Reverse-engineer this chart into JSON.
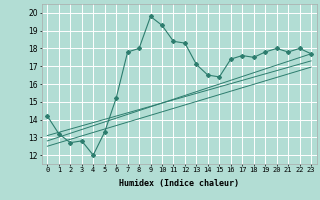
{
  "xlabel": "Humidex (Indice chaleur)",
  "bg_color": "#b2ddd4",
  "grid_color": "#ffffff",
  "line_color": "#2d7d6e",
  "xlim": [
    -0.5,
    23.5
  ],
  "ylim": [
    11.5,
    20.5
  ],
  "xticks": [
    0,
    1,
    2,
    3,
    4,
    5,
    6,
    7,
    8,
    9,
    10,
    11,
    12,
    13,
    14,
    15,
    16,
    17,
    18,
    19,
    20,
    21,
    22,
    23
  ],
  "yticks": [
    12,
    13,
    14,
    15,
    16,
    17,
    18,
    19,
    20
  ],
  "main_x": [
    0,
    1,
    2,
    3,
    4,
    5,
    6,
    7,
    8,
    9,
    10,
    11,
    12,
    13,
    14,
    15,
    16,
    17,
    18,
    19,
    20,
    21,
    22,
    23
  ],
  "main_y": [
    14.2,
    13.2,
    12.7,
    12.8,
    12.0,
    13.3,
    15.2,
    17.8,
    18.0,
    19.8,
    19.3,
    18.4,
    18.3,
    17.1,
    16.5,
    16.4,
    17.4,
    17.6,
    17.5,
    17.8,
    18.0,
    17.8,
    18.0,
    17.7
  ],
  "line1_x": [
    0,
    23
  ],
  "line1_y": [
    12.8,
    17.7
  ],
  "line2_x": [
    0,
    23
  ],
  "line2_y": [
    13.1,
    17.3
  ],
  "line3_x": [
    0,
    23
  ],
  "line3_y": [
    12.5,
    16.95
  ],
  "tick_fontsize": 5.0,
  "xlabel_fontsize": 6.0
}
